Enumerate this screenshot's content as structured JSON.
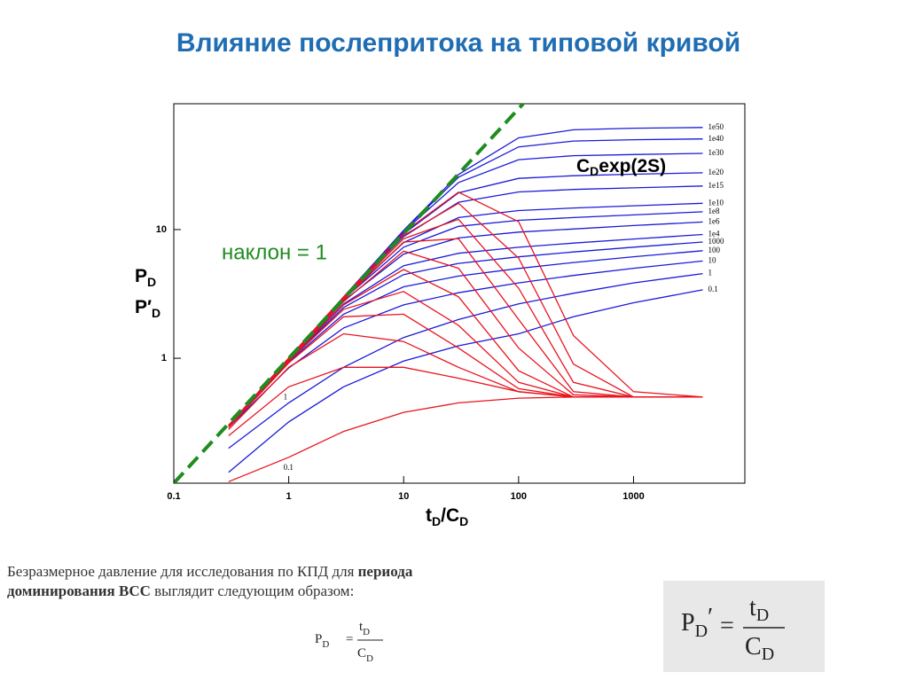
{
  "slide_title": "Влияние послепритока на типовой кривой",
  "chart_data": {
    "type": "line",
    "log_x": true,
    "log_y": true,
    "annotation": [
      "C",
      "D",
      "exp(2S)"
    ],
    "slope_label": "наклон = 1",
    "ylabel": [
      [
        "P",
        "D"
      ],
      [
        "P′",
        "D"
      ]
    ],
    "xlabel": [
      [
        "t",
        "D"
      ],
      [
        "/C",
        "D"
      ]
    ],
    "xlim": [
      0.1,
      9300
    ],
    "ylim": [
      0.107,
      95
    ],
    "xticks": [
      0.1,
      1,
      10,
      100,
      1000
    ],
    "yticks": [
      1,
      10
    ],
    "x": [
      0.3,
      1,
      3,
      10,
      30,
      100,
      300,
      1000,
      4000
    ],
    "series": [
      {
        "name": "1e50",
        "color": "#1a1ad8",
        "values": [
          0.3,
          1.0,
          3.0,
          9.86,
          26.8,
          51.6,
          59.6,
          61.3,
          62.1
        ]
      },
      {
        "name": "1e40",
        "color": "#1a1ad8",
        "values": [
          0.3,
          1.0,
          2.99,
          9.79,
          25.5,
          43.9,
          48.7,
          49.9,
          50.6
        ]
      },
      {
        "name": "1e30",
        "color": "#1a1ad8",
        "values": [
          0.3,
          1.0,
          2.99,
          9.63,
          23.2,
          34.9,
          37.5,
          38.3,
          39.1
        ]
      },
      {
        "name": "1e20",
        "color": "#1a1ad8",
        "values": [
          0.3,
          1.0,
          2.98,
          9.26,
          19.3,
          25.0,
          26.2,
          26.9,
          27.6
        ]
      },
      {
        "name": "1e15",
        "color": "#1a1ad8",
        "values": [
          0.3,
          1.0,
          2.96,
          8.82,
          16.3,
          19.6,
          20.5,
          21.1,
          21.8
        ]
      },
      {
        "name": "1e10",
        "color": "#1a1ad8",
        "values": [
          0.3,
          1.0,
          2.92,
          7.93,
          12.4,
          14.06,
          14.7,
          15.3,
          16.0
        ]
      },
      {
        "name": "1e8",
        "color": "#1a1ad8",
        "values": [
          0.3,
          0.99,
          2.88,
          7.3,
          10.6,
          11.8,
          12.4,
          13.0,
          13.75
        ]
      },
      {
        "name": "1e6",
        "color": "#1a1ad8",
        "values": [
          0.3,
          0.99,
          2.8,
          6.45,
          8.6,
          9.55,
          10.1,
          10.75,
          11.45
        ]
      },
      {
        "name": "1e4",
        "color": "#1a1ad8",
        "values": [
          0.3,
          0.98,
          2.64,
          5.24,
          6.54,
          7.28,
          7.85,
          8.45,
          9.15
        ]
      },
      {
        "name": "1000",
        "color": "#1a1ad8",
        "values": [
          0.3,
          0.97,
          2.48,
          4.47,
          5.46,
          6.14,
          6.7,
          7.3,
          8.0
        ]
      },
      {
        "name": "100",
        "color": "#1a1ad8",
        "values": [
          0.3,
          0.94,
          2.2,
          3.59,
          4.35,
          4.99,
          5.55,
          6.15,
          6.85
        ]
      },
      {
        "name": "10",
        "color": "#1a1ad8",
        "values": [
          0.29,
          0.84,
          1.72,
          2.6,
          3.23,
          3.85,
          4.4,
          5.0,
          5.7
        ]
      },
      {
        "name": "1",
        "color": "#1a1ad8",
        "values": [
          0.2,
          0.45,
          0.85,
          1.45,
          2.0,
          2.65,
          3.2,
          3.85,
          4.55
        ]
      },
      {
        "name": "0.1",
        "color": "#1a1ad8",
        "values": [
          0.13,
          0.32,
          0.6,
          0.95,
          1.25,
          1.55,
          2.1,
          2.7,
          3.4
        ]
      },
      {
        "color": "#e8141e",
        "values": [
          0.3,
          1.0,
          3.0,
          9.5,
          19.5,
          11.5,
          1.5,
          0.55,
          0.5
        ]
      },
      {
        "color": "#e8141e",
        "values": [
          0.3,
          1.0,
          2.95,
          9.0,
          16.0,
          6.0,
          0.9,
          0.5,
          0.5
        ]
      },
      {
        "color": "#e8141e",
        "values": [
          0.3,
          1.0,
          2.9,
          8.5,
          12.0,
          3.5,
          0.65,
          0.5,
          0.5
        ]
      },
      {
        "color": "#e8141e",
        "values": [
          0.3,
          0.99,
          2.85,
          8.0,
          8.5,
          2.0,
          0.55,
          0.5,
          0.5
        ]
      },
      {
        "color": "#e8141e",
        "values": [
          0.3,
          0.98,
          2.75,
          6.8,
          5.0,
          1.2,
          0.52,
          0.5,
          0.5
        ]
      },
      {
        "color": "#e8141e",
        "values": [
          0.3,
          0.97,
          2.6,
          4.9,
          3.0,
          0.8,
          0.5,
          0.5,
          0.5
        ]
      },
      {
        "color": "#e8141e",
        "values": [
          0.3,
          0.95,
          2.4,
          3.3,
          1.8,
          0.65,
          0.5,
          0.5,
          0.5
        ]
      },
      {
        "color": "#e8141e",
        "values": [
          0.29,
          0.92,
          2.1,
          2.2,
          1.2,
          0.58,
          0.5,
          0.5,
          0.5
        ]
      },
      {
        "color": "#e8141e",
        "values": [
          0.28,
          0.85,
          1.55,
          1.35,
          0.85,
          0.55,
          0.5,
          0.5,
          0.5
        ]
      },
      {
        "name": "1",
        "color": "#e8141e",
        "values": [
          0.25,
          0.6,
          0.85,
          0.85,
          0.7,
          0.55,
          0.5,
          0.5,
          0.5
        ]
      },
      {
        "name": "0.1",
        "color": "#e8141e",
        "values": [
          0.11,
          0.17,
          0.27,
          0.38,
          0.45,
          0.49,
          0.5,
          0.5,
          0.5
        ]
      }
    ]
  },
  "caption": [
    "Безразмерное давление для исследования по КПД для ",
    "периода",
    "доминирования ВСС",
    " выглядит следующим образом:"
  ],
  "formula": {
    "lhs": [
      "P",
      "D"
    ],
    "eq": "=",
    "num": [
      "t",
      "D"
    ],
    "den": [
      "C",
      "D"
    ]
  },
  "boxed_formula": {
    "lhs": [
      "P",
      "D",
      "′"
    ],
    "eq": "=",
    "num": [
      "t",
      "D"
    ],
    "den": [
      "C",
      "D"
    ]
  }
}
